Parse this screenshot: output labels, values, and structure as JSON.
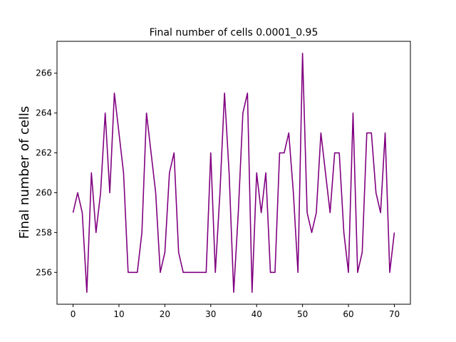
{
  "chart_data": {
    "type": "line",
    "title": "Final number of cells 0.0001_0.95",
    "xlabel": "",
    "ylabel": "Final number of cells",
    "x": [
      0,
      1,
      2,
      3,
      4,
      5,
      6,
      7,
      8,
      9,
      10,
      11,
      12,
      13,
      14,
      15,
      16,
      17,
      18,
      19,
      20,
      21,
      22,
      23,
      24,
      25,
      26,
      27,
      28,
      29,
      30,
      31,
      32,
      33,
      34,
      35,
      36,
      37,
      38,
      39,
      40,
      41,
      42,
      43,
      44,
      45,
      46,
      47,
      48,
      49,
      50,
      51,
      52,
      53,
      54,
      55,
      56,
      57,
      58,
      59,
      60,
      61,
      62,
      63,
      64,
      65,
      66,
      67,
      68,
      69,
      70
    ],
    "series": [
      {
        "color": "#800080",
        "values": [
          259,
          260,
          259,
          255,
          261,
          258,
          260,
          264,
          260,
          265,
          263,
          261,
          256,
          256,
          256,
          258,
          264,
          262,
          260,
          256,
          257,
          261,
          262,
          257,
          256,
          256,
          256,
          256,
          256,
          256,
          262,
          256,
          260,
          265,
          261,
          255,
          259,
          264,
          265,
          255,
          261,
          259,
          261,
          256,
          256,
          262,
          262,
          263,
          260,
          256,
          267,
          259,
          258,
          259,
          263,
          261,
          259,
          262,
          262,
          258,
          256,
          264,
          256,
          257,
          263,
          263,
          260,
          259,
          263,
          256,
          258
        ]
      }
    ],
    "xlim": [
      -3.5,
      73.5
    ],
    "ylim": [
      254.4,
      267.6
    ],
    "xticks": [
      0,
      10,
      20,
      30,
      40,
      50,
      60,
      70
    ],
    "yticks": [
      256,
      258,
      260,
      262,
      264,
      266
    ],
    "grid": false
  }
}
